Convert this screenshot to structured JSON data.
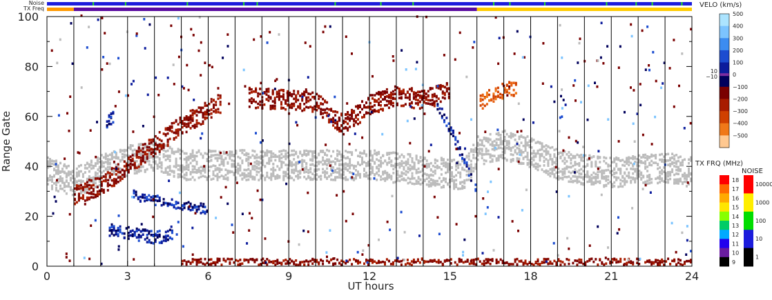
{
  "chart_data": {
    "type": "heatmap",
    "title": "",
    "xlabel": "UT hours",
    "ylabel": "Range Gate",
    "xlim": [
      0,
      24
    ],
    "ylim": [
      0,
      100
    ],
    "x_ticks": [
      0,
      3,
      6,
      9,
      12,
      15,
      18,
      21,
      24
    ],
    "y_ticks": [
      0,
      20,
      40,
      60,
      80,
      100
    ],
    "scan_boundaries_ut": [
      1,
      2,
      3,
      4,
      5,
      6,
      7,
      8,
      9,
      10,
      11,
      12,
      13,
      14,
      15,
      16,
      17,
      18,
      19,
      20,
      21,
      22,
      23
    ],
    "top_strips": {
      "noise_label": "Noise",
      "txfreq_label": "TX Freq",
      "noise_segments": [
        {
          "x0": 0,
          "x1": 24,
          "color": "#1c1cdc"
        }
      ],
      "noise_green_marks_ut": [
        1.7,
        2.9,
        5.2,
        7.3,
        7.8,
        10.7,
        12.4,
        13.6,
        16.6,
        17.2,
        18.5,
        20.8,
        21.9,
        22.5,
        23.6
      ],
      "txfreq_segments": [
        {
          "x0": 0,
          "x1": 1,
          "color": "#ff9900"
        },
        {
          "x0": 1,
          "x1": 16,
          "color": "#5a0ca0"
        },
        {
          "x0": 16,
          "x1": 24,
          "color": "#ffcc00"
        }
      ]
    },
    "velocity_scale": {
      "title": "VELO (km/s)",
      "labels": [
        "500",
        "400",
        "300",
        "200",
        "100",
        "0",
        "−100",
        "−200",
        "−300",
        "−400",
        "−500"
      ],
      "ground_scatter_labels": [
        "10",
        "−10"
      ],
      "colors": [
        "#ace4ff",
        "#7cc4ff",
        "#3c8cf0",
        "#1c4cd0",
        "#0c1c9c",
        "#00005c",
        "#7a0000",
        "#a81c00",
        "#d04000",
        "#f07818",
        "#ffc890"
      ],
      "ground_color": "#7c2ca0"
    },
    "txfreq_scale": {
      "title": "TX FRQ (MHz)",
      "labels": [
        "18",
        "17",
        "16",
        "15",
        "14",
        "13",
        "12",
        "11",
        "10",
        "9"
      ],
      "colors": [
        "#ff0000",
        "#ff6a00",
        "#ffaa00",
        "#ffe600",
        "#88ff00",
        "#00cc66",
        "#00aaff",
        "#2200ee",
        "#6a1ca0",
        "#000000"
      ]
    },
    "noise_scale": {
      "title": "NOISE",
      "labels": [
        "10000",
        "1000",
        "100",
        "10",
        "1"
      ],
      "colors": [
        "#ff0000",
        "#ffee00",
        "#00dd00",
        "#1c1cdc",
        "#000000"
      ]
    },
    "features": [
      {
        "name": "ground scatter band",
        "kind": "ground",
        "points": [
          [
            0,
            37
          ],
          [
            1,
            33
          ],
          [
            2,
            38
          ],
          [
            3,
            42
          ],
          [
            4,
            44
          ],
          [
            5,
            40
          ],
          [
            8,
            40
          ],
          [
            12,
            40
          ],
          [
            15.5,
            36
          ],
          [
            16,
            46
          ],
          [
            17,
            48
          ],
          [
            18,
            45
          ],
          [
            19,
            40
          ],
          [
            20,
            38
          ],
          [
            21,
            37
          ],
          [
            22,
            38
          ],
          [
            23,
            39
          ],
          [
            24,
            37
          ]
        ],
        "width": 12
      },
      {
        "name": "rising negative band",
        "kind": "neg",
        "points": [
          [
            1,
            28
          ],
          [
            2,
            32
          ],
          [
            3,
            40
          ],
          [
            4,
            48
          ],
          [
            5,
            56
          ],
          [
            6,
            62
          ],
          [
            6.5,
            65
          ]
        ],
        "width": 8
      },
      {
        "name": "upper negative echoes",
        "kind": "neg",
        "points": [
          [
            7.5,
            67
          ],
          [
            9,
            66
          ],
          [
            10,
            65
          ],
          [
            11,
            56
          ],
          [
            12,
            64
          ],
          [
            13,
            68
          ],
          [
            14,
            66
          ],
          [
            15,
            70
          ]
        ],
        "width": 8
      },
      {
        "name": "positive streak",
        "kind": "pos",
        "points": [
          [
            14.5,
            64
          ],
          [
            15,
            54
          ],
          [
            15.5,
            42
          ],
          [
            16,
            28
          ]
        ],
        "width": 4
      },
      {
        "name": "mid positive band",
        "kind": "pos",
        "points": [
          [
            3.2,
            28
          ],
          [
            4,
            26
          ],
          [
            5,
            24
          ],
          [
            6,
            22
          ]
        ],
        "width": 4
      },
      {
        "name": "low positive band",
        "kind": "pos",
        "points": [
          [
            2.3,
            14
          ],
          [
            3,
            13
          ],
          [
            4,
            11
          ],
          [
            4.7,
            12
          ]
        ],
        "width": 5
      },
      {
        "name": "positive cluster",
        "kind": "pos",
        "points": [
          [
            2.2,
            57
          ],
          [
            2.5,
            60
          ]
        ],
        "width": 6
      },
      {
        "name": "orange echoes",
        "kind": "orange",
        "points": [
          [
            16.1,
            65
          ],
          [
            16.5,
            68
          ],
          [
            17,
            70
          ],
          [
            17.5,
            71
          ]
        ],
        "width": 6
      },
      {
        "name": "near-range negative",
        "kind": "neg",
        "points": [
          [
            5,
            1
          ],
          [
            10,
            1
          ],
          [
            15,
            1
          ],
          [
            20,
            1
          ],
          [
            24,
            1
          ]
        ],
        "width": 3
      }
    ]
  }
}
